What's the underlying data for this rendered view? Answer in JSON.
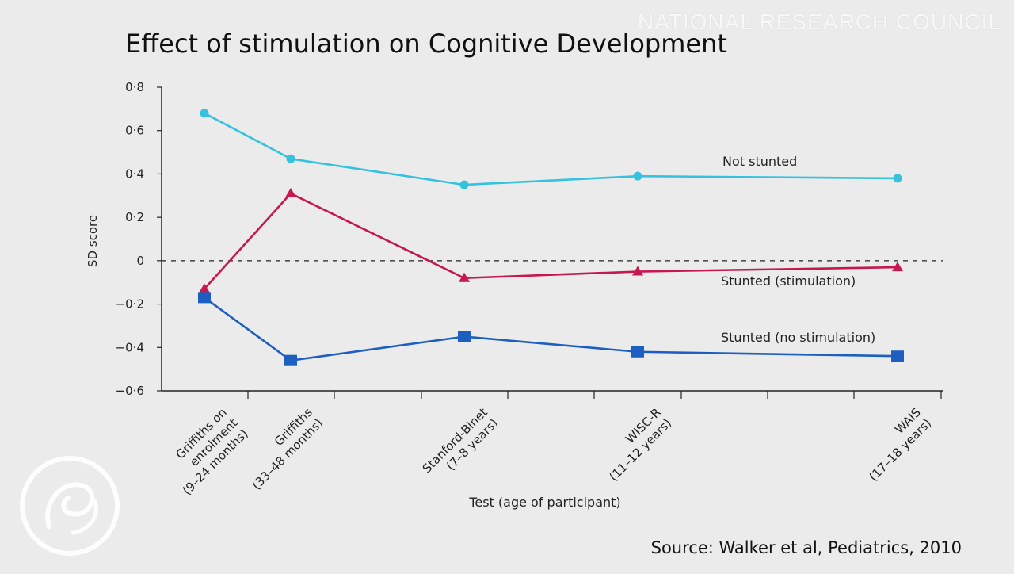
{
  "slide": {
    "title": "Effect of stimulation on Cognitive Development",
    "source": "Source: Walker et al, Pediatrics, 2010",
    "watermark_org": "NATIONAL RESEARCH COUNCIL",
    "watermark_logo_icon": "circular-emblem-icon"
  },
  "chart_data": {
    "type": "line",
    "title": "",
    "xlabel": "Test (age of participant)",
    "ylabel": "SD score",
    "ylim": [
      -0.6,
      0.8
    ],
    "yticks": [
      "0·8",
      "0·6",
      "0·4",
      "0·2",
      "0",
      "−0·2",
      "−0·4",
      "−0·6"
    ],
    "categories": [
      [
        "Griffiths on",
        "enrolment",
        "(9–24 months)"
      ],
      [
        "Griffiths",
        "(33–48 months)"
      ],
      [
        "Stanford-Binet",
        "(7–8 years)"
      ],
      [
        "WISC-R",
        "(11–12 years)"
      ],
      [
        "WAIS",
        "(17–18 years)"
      ]
    ],
    "reference_line": {
      "y": 0,
      "style": "dashed"
    },
    "grid": false,
    "series": [
      {
        "name": "Not stunted",
        "color": "#35c2df",
        "marker": "circle",
        "values": [
          0.68,
          0.47,
          0.35,
          0.39,
          0.38
        ]
      },
      {
        "name": "Stunted (stimulation)",
        "color": "#c5184d",
        "marker": "triangle",
        "values": [
          -0.13,
          0.31,
          -0.08,
          -0.05,
          -0.03
        ]
      },
      {
        "name": "Stunted (no stimulation)",
        "color": "#1c5fc0",
        "marker": "square",
        "values": [
          -0.17,
          -0.46,
          -0.35,
          -0.42,
          -0.44
        ]
      }
    ]
  }
}
